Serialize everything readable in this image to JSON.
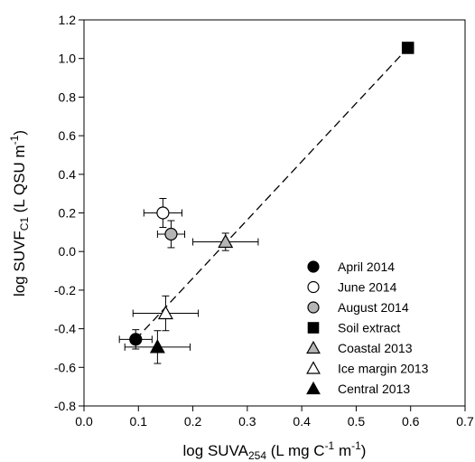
{
  "chart_data": {
    "type": "scatter",
    "xlabel": {
      "base": "log SUVA",
      "sub": "254",
      "mid": " (L mg C",
      "sup1": "-1",
      "mid2": " m",
      "sup2": "-1",
      "tail": ")"
    },
    "ylabel": {
      "base": "log SUVF",
      "sub": "C1",
      "mid": " (L QSU m",
      "sup": "-1",
      "tail": ")"
    },
    "xlim": [
      0.0,
      0.7
    ],
    "ylim": [
      -0.8,
      1.2
    ],
    "xticks": [
      0.0,
      0.1,
      0.2,
      0.3,
      0.4,
      0.5,
      0.6,
      0.7
    ],
    "xtick_labels": [
      "0.0",
      "0.1",
      "0.2",
      "0.3",
      "0.4",
      "0.5",
      "0.6",
      "0.7"
    ],
    "yticks": [
      -0.8,
      -0.6,
      -0.4,
      -0.2,
      0.0,
      0.2,
      0.4,
      0.6,
      0.8,
      1.0,
      1.2
    ],
    "ytick_labels": [
      "-0.8",
      "-0.6",
      "-0.4",
      "-0.2",
      "0.0",
      "0.2",
      "0.4",
      "0.6",
      "0.8",
      "1.0",
      "1.2"
    ],
    "grid": false,
    "legend_position": "bottom-right",
    "series": [
      {
        "name": "April 2014",
        "marker": "circle",
        "fill": "#000000",
        "x": 0.095,
        "y": -0.455,
        "xerr": 0.03,
        "yerr": 0.05
      },
      {
        "name": "June 2014",
        "marker": "circle",
        "fill": "#ffffff",
        "x": 0.145,
        "y": 0.2,
        "xerr": 0.035,
        "yerr": 0.075
      },
      {
        "name": "August 2014",
        "marker": "circle",
        "fill": "#b5b5b5",
        "x": 0.16,
        "y": 0.09,
        "xerr": 0.025,
        "yerr": 0.07
      },
      {
        "name": "Soil extract",
        "marker": "square",
        "fill": "#000000",
        "x": 0.595,
        "y": 1.055,
        "xerr": 0.01,
        "yerr": 0.0
      },
      {
        "name": "Coastal 2013",
        "marker": "triangle",
        "fill": "#b5b5b5",
        "x": 0.26,
        "y": 0.05,
        "xerr": 0.06,
        "yerr": 0.045
      },
      {
        "name": "Ice margin 2013",
        "marker": "triangle",
        "fill": "#ffffff",
        "x": 0.15,
        "y": -0.32,
        "xerr": 0.06,
        "yerr": 0.09
      },
      {
        "name": "Central 2013",
        "marker": "triangle",
        "fill": "#000000",
        "x": 0.135,
        "y": -0.495,
        "xerr": 0.06,
        "yerr": 0.085
      }
    ],
    "fit_line": {
      "style": "dashed",
      "x": [
        0.095,
        0.595
      ],
      "y": [
        -0.455,
        1.055
      ]
    }
  }
}
